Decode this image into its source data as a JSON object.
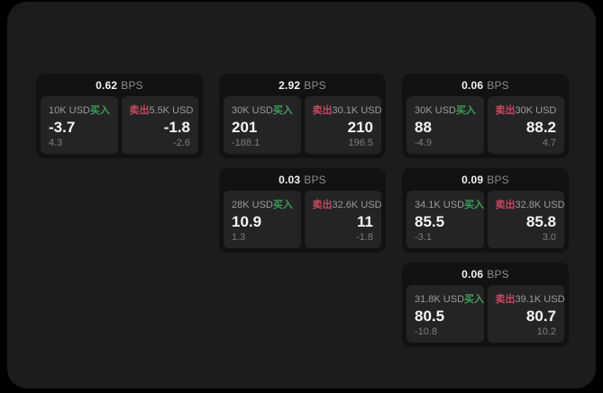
{
  "theme": {
    "buy_color": "#3e9e58",
    "sell_color": "#c44a5e",
    "panel_bg": "#1c1c1d",
    "card_bg": "#121212",
    "tile_bg": "#242426"
  },
  "cards": [
    {
      "col": 1,
      "row": 1,
      "bps_value": "0.62",
      "bps_unit": "BPS",
      "buy": {
        "size": "10K USD",
        "side_label": "买入",
        "price": "-3.7",
        "delta": "4.3"
      },
      "sell": {
        "size": "5.5K USD",
        "side_label": "卖出",
        "price": "-1.8",
        "delta": "-2.6"
      }
    },
    {
      "col": 2,
      "row": 1,
      "bps_value": "2.92",
      "bps_unit": "BPS",
      "buy": {
        "size": "30K USD",
        "side_label": "买入",
        "price": "201",
        "delta": "-188.1"
      },
      "sell": {
        "size": "30.1K USD",
        "side_label": "卖出",
        "price": "210",
        "delta": "196.5"
      }
    },
    {
      "col": 3,
      "row": 1,
      "bps_value": "0.06",
      "bps_unit": "BPS",
      "buy": {
        "size": "30K USD",
        "side_label": "买入",
        "price": "88",
        "delta": "-4.9"
      },
      "sell": {
        "size": "30K USD",
        "side_label": "卖出",
        "price": "88.2",
        "delta": "4.7"
      }
    },
    {
      "col": 2,
      "row": 2,
      "bps_value": "0.03",
      "bps_unit": "BPS",
      "buy": {
        "size": "28K USD",
        "side_label": "买入",
        "price": "10.9",
        "delta": "1.3"
      },
      "sell": {
        "size": "32.6K USD",
        "side_label": "卖出",
        "price": "11",
        "delta": "-1.8"
      }
    },
    {
      "col": 3,
      "row": 2,
      "bps_value": "0.09",
      "bps_unit": "BPS",
      "buy": {
        "size": "34.1K USD",
        "side_label": "买入",
        "price": "85.5",
        "delta": "-3.1"
      },
      "sell": {
        "size": "32.8K USD",
        "side_label": "卖出",
        "price": "85.8",
        "delta": "3.0"
      }
    },
    {
      "col": 3,
      "row": 3,
      "bps_value": "0.06",
      "bps_unit": "BPS",
      "buy": {
        "size": "31.8K USD",
        "side_label": "买入",
        "price": "80.5",
        "delta": "-10.8"
      },
      "sell": {
        "size": "39.1K USD",
        "side_label": "卖出",
        "price": "80.7",
        "delta": "10.2"
      }
    }
  ]
}
